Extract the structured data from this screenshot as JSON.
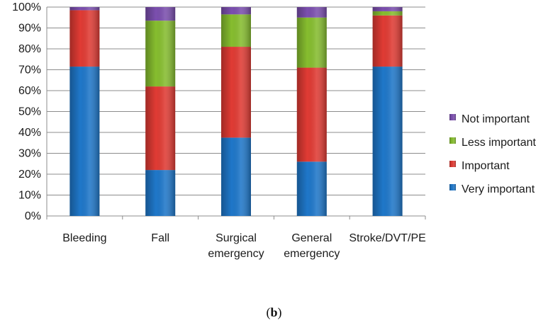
{
  "chart_data": {
    "type": "bar",
    "stacked": true,
    "categories": [
      [
        "Bleeding"
      ],
      [
        "Fall"
      ],
      [
        "Surgical",
        "emergency"
      ],
      [
        "General",
        "emergency"
      ],
      [
        "Stroke/DVT/PE"
      ]
    ],
    "series": [
      {
        "name": "Very important",
        "color": "#1f77c9",
        "values": [
          71.5,
          22,
          37.5,
          26,
          71.5
        ]
      },
      {
        "name": "Important",
        "color": "#e03b34",
        "values": [
          27,
          40,
          43.5,
          45,
          24.5
        ]
      },
      {
        "name": "Less important",
        "color": "#86bd2f",
        "values": [
          0,
          31.5,
          15.5,
          24,
          2
        ]
      },
      {
        "name": "Not important",
        "color": "#7b4fae",
        "values": [
          1.5,
          6.5,
          3.5,
          5,
          2
        ]
      }
    ],
    "ylim": [
      0,
      100
    ],
    "yticks": [
      "0%",
      "10%",
      "20%",
      "30%",
      "40%",
      "50%",
      "60%",
      "70%",
      "80%",
      "90%",
      "100%"
    ],
    "legend_position": "right",
    "grid": true
  },
  "caption": {
    "pre": "(",
    "label": "b",
    "post": ")"
  }
}
